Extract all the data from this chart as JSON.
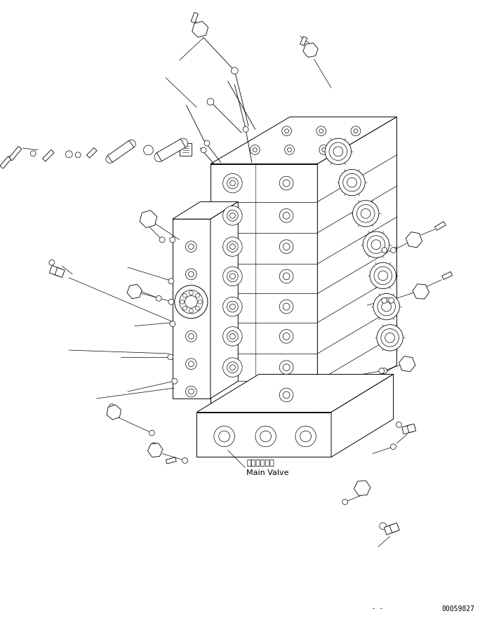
{
  "background_color": "#ffffff",
  "line_color": "#000000",
  "text_color": "#000000",
  "label_japanese": "メインバルブ",
  "label_english": "Main Valve",
  "part_number": "00059827",
  "fig_width": 6.84,
  "fig_height": 8.88,
  "dpi": 100
}
